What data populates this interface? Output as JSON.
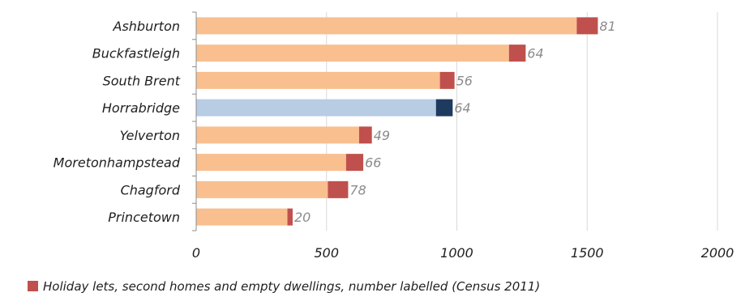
{
  "chart_data": {
    "type": "bar",
    "orientation": "horizontal",
    "stacked": true,
    "categories": [
      "Ashburton",
      "Buckfastleigh",
      "South Brent",
      "Horrabridge",
      "Yelverton",
      "Moretonhampstead",
      "Chagford",
      "Princetown"
    ],
    "series": [
      {
        "name": "",
        "values": [
          1460,
          1200,
          935,
          920,
          625,
          575,
          505,
          350
        ],
        "color": "#f9bf8f",
        "highlight_color": "#b8cce4",
        "highlight_index": 3
      },
      {
        "name": "Holiday lets, second homes and empty dwellings, number labelled (Census 2011)",
        "values": [
          81,
          64,
          56,
          64,
          49,
          66,
          78,
          20
        ],
        "color": "#c0504d",
        "highlight_color": "#1f3a5f",
        "highlight_index": 3
      }
    ],
    "data_labels": [
      "81",
      "64",
      "56",
      "64",
      "49",
      "66",
      "78",
      "20"
    ],
    "xlim": [
      0,
      2000
    ],
    "xticks": [
      "0",
      "500",
      "1000",
      "1500",
      "2000"
    ],
    "grid": "vertical",
    "legend_position": "bottom"
  }
}
